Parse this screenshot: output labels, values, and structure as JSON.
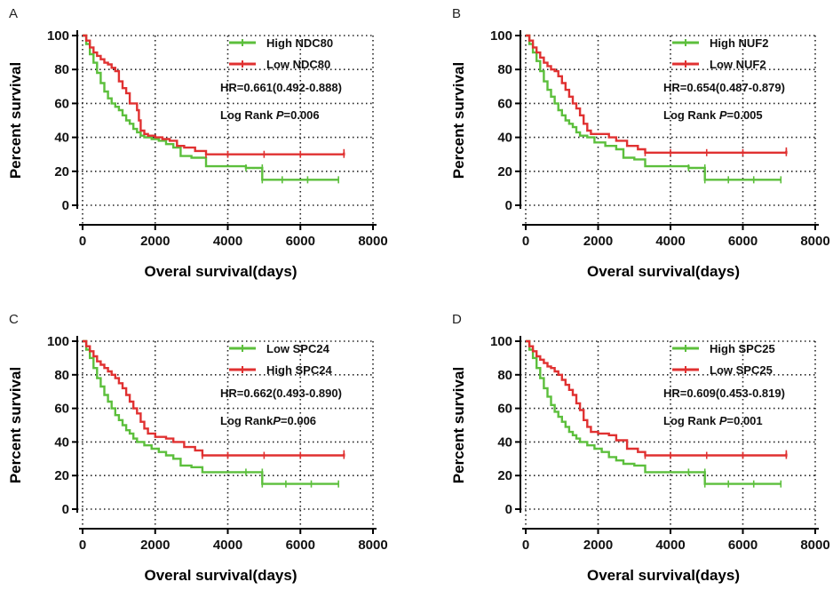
{
  "chart_data": [
    {
      "type": "line",
      "panel_label": "A",
      "xlabel": "Overal survival(days)",
      "ylabel": "Percent survival",
      "xlim": [
        0,
        8000
      ],
      "ylim": [
        0,
        100
      ],
      "xticks": [
        "0",
        "2000",
        "4000",
        "6000",
        "8000"
      ],
      "yticks": [
        "0",
        "20",
        "40",
        "60",
        "80",
        "100"
      ],
      "grid": true,
      "legend_position": "top-right",
      "annotations": {
        "hr": "HR=0.661(0.492-0.888)",
        "logrank_prefix": "Log Rank ",
        "logrank_p": "P",
        "logrank_value": "=0.006"
      },
      "series": [
        {
          "name": "High NDC80",
          "color": "#5cbf3c",
          "points": [
            [
              0,
              100
            ],
            [
              100,
              95
            ],
            [
              200,
              89
            ],
            [
              300,
              84
            ],
            [
              400,
              78
            ],
            [
              500,
              72
            ],
            [
              600,
              67
            ],
            [
              700,
              63
            ],
            [
              800,
              60
            ],
            [
              900,
              58
            ],
            [
              1000,
              56
            ],
            [
              1100,
              53
            ],
            [
              1200,
              50
            ],
            [
              1300,
              48
            ],
            [
              1400,
              45
            ],
            [
              1500,
              43
            ],
            [
              1600,
              41
            ],
            [
              1700,
              40
            ],
            [
              1900,
              39
            ],
            [
              2100,
              38
            ],
            [
              2300,
              36
            ],
            [
              2500,
              34
            ],
            [
              2700,
              29
            ],
            [
              3000,
              28
            ],
            [
              3400,
              23
            ],
            [
              4000,
              23
            ],
            [
              4500,
              22
            ],
            [
              4950,
              22
            ],
            [
              4950,
              15
            ],
            [
              5500,
              15
            ],
            [
              6200,
              15
            ],
            [
              7050,
              15
            ]
          ]
        },
        {
          "name": "Low NDC80",
          "color": "#e03131",
          "points": [
            [
              0,
              100
            ],
            [
              100,
              97
            ],
            [
              200,
              93
            ],
            [
              300,
              90
            ],
            [
              400,
              88
            ],
            [
              500,
              86
            ],
            [
              600,
              84
            ],
            [
              700,
              83
            ],
            [
              800,
              81
            ],
            [
              900,
              79
            ],
            [
              1000,
              73
            ],
            [
              1100,
              69
            ],
            [
              1200,
              66
            ],
            [
              1300,
              60
            ],
            [
              1400,
              60
            ],
            [
              1500,
              56
            ],
            [
              1550,
              50
            ],
            [
              1600,
              44
            ],
            [
              1700,
              42
            ],
            [
              1800,
              41
            ],
            [
              2000,
              40
            ],
            [
              2200,
              39
            ],
            [
              2400,
              38
            ],
            [
              2600,
              35
            ],
            [
              2800,
              34
            ],
            [
              3100,
              32
            ],
            [
              3400,
              30
            ],
            [
              4000,
              30
            ],
            [
              5000,
              30
            ],
            [
              6000,
              30
            ],
            [
              7200,
              30
            ],
            [
              7200,
              31
            ]
          ]
        }
      ]
    },
    {
      "type": "line",
      "panel_label": "B",
      "xlabel": "Overal survival(days)",
      "ylabel": "Percent survival",
      "xlim": [
        0,
        8000
      ],
      "ylim": [
        0,
        100
      ],
      "xticks": [
        "0",
        "2000",
        "4000",
        "6000",
        "8000"
      ],
      "yticks": [
        "0",
        "20",
        "40",
        "60",
        "80",
        "100"
      ],
      "grid": true,
      "legend_position": "top-right",
      "annotations": {
        "hr": "HR=0.654(0.487-0.879)",
        "logrank_prefix": "Log Rank ",
        "logrank_p": "P",
        "logrank_value": "=0.005"
      },
      "series": [
        {
          "name": "High NUF2",
          "color": "#5cbf3c",
          "points": [
            [
              0,
              100
            ],
            [
              100,
              95
            ],
            [
              200,
              90
            ],
            [
              300,
              85
            ],
            [
              400,
              79
            ],
            [
              500,
              73
            ],
            [
              600,
              68
            ],
            [
              700,
              64
            ],
            [
              800,
              60
            ],
            [
              900,
              56
            ],
            [
              1000,
              53
            ],
            [
              1100,
              50
            ],
            [
              1200,
              48
            ],
            [
              1300,
              46
            ],
            [
              1400,
              43
            ],
            [
              1500,
              41
            ],
            [
              1700,
              40
            ],
            [
              1900,
              37
            ],
            [
              2200,
              35
            ],
            [
              2500,
              33
            ],
            [
              2700,
              28
            ],
            [
              3000,
              27
            ],
            [
              3300,
              23
            ],
            [
              4000,
              23
            ],
            [
              4500,
              22
            ],
            [
              4950,
              22
            ],
            [
              4950,
              15
            ],
            [
              5600,
              15
            ],
            [
              6300,
              15
            ],
            [
              7050,
              15
            ]
          ]
        },
        {
          "name": "Low NUF2",
          "color": "#e03131",
          "points": [
            [
              0,
              100
            ],
            [
              100,
              97
            ],
            [
              200,
              93
            ],
            [
              300,
              90
            ],
            [
              400,
              87
            ],
            [
              500,
              84
            ],
            [
              600,
              82
            ],
            [
              700,
              80
            ],
            [
              800,
              79
            ],
            [
              900,
              76
            ],
            [
              1000,
              72
            ],
            [
              1100,
              68
            ],
            [
              1200,
              64
            ],
            [
              1300,
              60
            ],
            [
              1400,
              57
            ],
            [
              1500,
              53
            ],
            [
              1600,
              48
            ],
            [
              1700,
              44
            ],
            [
              1800,
              42
            ],
            [
              2000,
              42
            ],
            [
              2300,
              40
            ],
            [
              2500,
              38
            ],
            [
              2800,
              35
            ],
            [
              3100,
              33
            ],
            [
              3300,
              31
            ],
            [
              4000,
              31
            ],
            [
              5000,
              31
            ],
            [
              6000,
              31
            ],
            [
              7200,
              31
            ],
            [
              7200,
              32
            ]
          ]
        }
      ]
    },
    {
      "type": "line",
      "panel_label": "C",
      "xlabel": "Overal survival(days)",
      "ylabel": "Percent survival",
      "xlim": [
        0,
        8000
      ],
      "ylim": [
        0,
        100
      ],
      "xticks": [
        "0",
        "2000",
        "4000",
        "6000",
        "8000"
      ],
      "yticks": [
        "0",
        "20",
        "40",
        "60",
        "80",
        "100"
      ],
      "grid": true,
      "legend_position": "top-right",
      "annotations": {
        "hr": "HR=0.662(0.493-0.890)",
        "logrank_prefix": "Log Rank",
        "logrank_p": "P",
        "logrank_value": "=0.006"
      },
      "series": [
        {
          "name": "Low SPC24",
          "color": "#5cbf3c",
          "points": [
            [
              0,
              100
            ],
            [
              100,
              95
            ],
            [
              200,
              90
            ],
            [
              300,
              84
            ],
            [
              400,
              78
            ],
            [
              500,
              73
            ],
            [
              600,
              68
            ],
            [
              700,
              64
            ],
            [
              800,
              60
            ],
            [
              900,
              56
            ],
            [
              1000,
              53
            ],
            [
              1100,
              50
            ],
            [
              1200,
              47
            ],
            [
              1300,
              45
            ],
            [
              1400,
              42
            ],
            [
              1500,
              40
            ],
            [
              1700,
              38
            ],
            [
              1900,
              36
            ],
            [
              2100,
              34
            ],
            [
              2300,
              32
            ],
            [
              2500,
              30
            ],
            [
              2700,
              26
            ],
            [
              3000,
              25
            ],
            [
              3300,
              22
            ],
            [
              4000,
              22
            ],
            [
              4500,
              22
            ],
            [
              4950,
              22
            ],
            [
              4950,
              15
            ],
            [
              5600,
              15
            ],
            [
              6300,
              15
            ],
            [
              7050,
              15
            ]
          ]
        },
        {
          "name": "High SPC24",
          "color": "#e03131",
          "points": [
            [
              0,
              100
            ],
            [
              100,
              97
            ],
            [
              200,
              94
            ],
            [
              300,
              91
            ],
            [
              400,
              88
            ],
            [
              500,
              86
            ],
            [
              600,
              84
            ],
            [
              700,
              82
            ],
            [
              800,
              80
            ],
            [
              900,
              78
            ],
            [
              1000,
              75
            ],
            [
              1100,
              72
            ],
            [
              1200,
              68
            ],
            [
              1300,
              64
            ],
            [
              1400,
              60
            ],
            [
              1500,
              57
            ],
            [
              1600,
              52
            ],
            [
              1700,
              48
            ],
            [
              1800,
              45
            ],
            [
              2000,
              43
            ],
            [
              2300,
              42
            ],
            [
              2500,
              40
            ],
            [
              2800,
              37
            ],
            [
              3100,
              35
            ],
            [
              3300,
              32
            ],
            [
              4000,
              32
            ],
            [
              5000,
              32
            ],
            [
              6000,
              32
            ],
            [
              7200,
              32
            ],
            [
              7200,
              33
            ]
          ]
        }
      ]
    },
    {
      "type": "line",
      "panel_label": "D",
      "xlabel": "Overal survival(days)",
      "ylabel": "Percent survival",
      "xlim": [
        0,
        8000
      ],
      "ylim": [
        0,
        100
      ],
      "xticks": [
        "0",
        "2000",
        "4000",
        "6000",
        "8000"
      ],
      "yticks": [
        "0",
        "20",
        "40",
        "60",
        "80",
        "100"
      ],
      "grid": true,
      "legend_position": "top-right",
      "annotations": {
        "hr": "HR=0.609(0.453-0.819)",
        "logrank_prefix": "Log Rank ",
        "logrank_p": "P",
        "logrank_value": "=0.001"
      },
      "series": [
        {
          "name": "High SPC25",
          "color": "#5cbf3c",
          "points": [
            [
              0,
              100
            ],
            [
              100,
              95
            ],
            [
              200,
              90
            ],
            [
              300,
              84
            ],
            [
              400,
              78
            ],
            [
              500,
              72
            ],
            [
              600,
              67
            ],
            [
              700,
              62
            ],
            [
              800,
              58
            ],
            [
              900,
              55
            ],
            [
              1000,
              52
            ],
            [
              1100,
              49
            ],
            [
              1200,
              46
            ],
            [
              1300,
              44
            ],
            [
              1400,
              42
            ],
            [
              1500,
              40
            ],
            [
              1700,
              38
            ],
            [
              1900,
              36
            ],
            [
              2100,
              34
            ],
            [
              2300,
              31
            ],
            [
              2500,
              29
            ],
            [
              2700,
              27
            ],
            [
              3000,
              26
            ],
            [
              3300,
              22
            ],
            [
              4000,
              22
            ],
            [
              4500,
              22
            ],
            [
              4950,
              22
            ],
            [
              4950,
              15
            ],
            [
              5600,
              15
            ],
            [
              6300,
              15
            ],
            [
              7050,
              15
            ]
          ]
        },
        {
          "name": "Low SPC25",
          "color": "#e03131",
          "points": [
            [
              0,
              100
            ],
            [
              100,
              97
            ],
            [
              200,
              94
            ],
            [
              300,
              91
            ],
            [
              400,
              89
            ],
            [
              500,
              87
            ],
            [
              600,
              85
            ],
            [
              700,
              84
            ],
            [
              800,
              82
            ],
            [
              900,
              80
            ],
            [
              1000,
              77
            ],
            [
              1100,
              74
            ],
            [
              1200,
              71
            ],
            [
              1300,
              68
            ],
            [
              1400,
              63
            ],
            [
              1500,
              59
            ],
            [
              1600,
              53
            ],
            [
              1700,
              49
            ],
            [
              1800,
              46
            ],
            [
              2000,
              45
            ],
            [
              2300,
              44
            ],
            [
              2500,
              41
            ],
            [
              2800,
              36
            ],
            [
              3100,
              34
            ],
            [
              3300,
              32
            ],
            [
              4000,
              32
            ],
            [
              5000,
              32
            ],
            [
              6000,
              32
            ],
            [
              7200,
              32
            ],
            [
              7200,
              33
            ]
          ]
        }
      ]
    }
  ]
}
